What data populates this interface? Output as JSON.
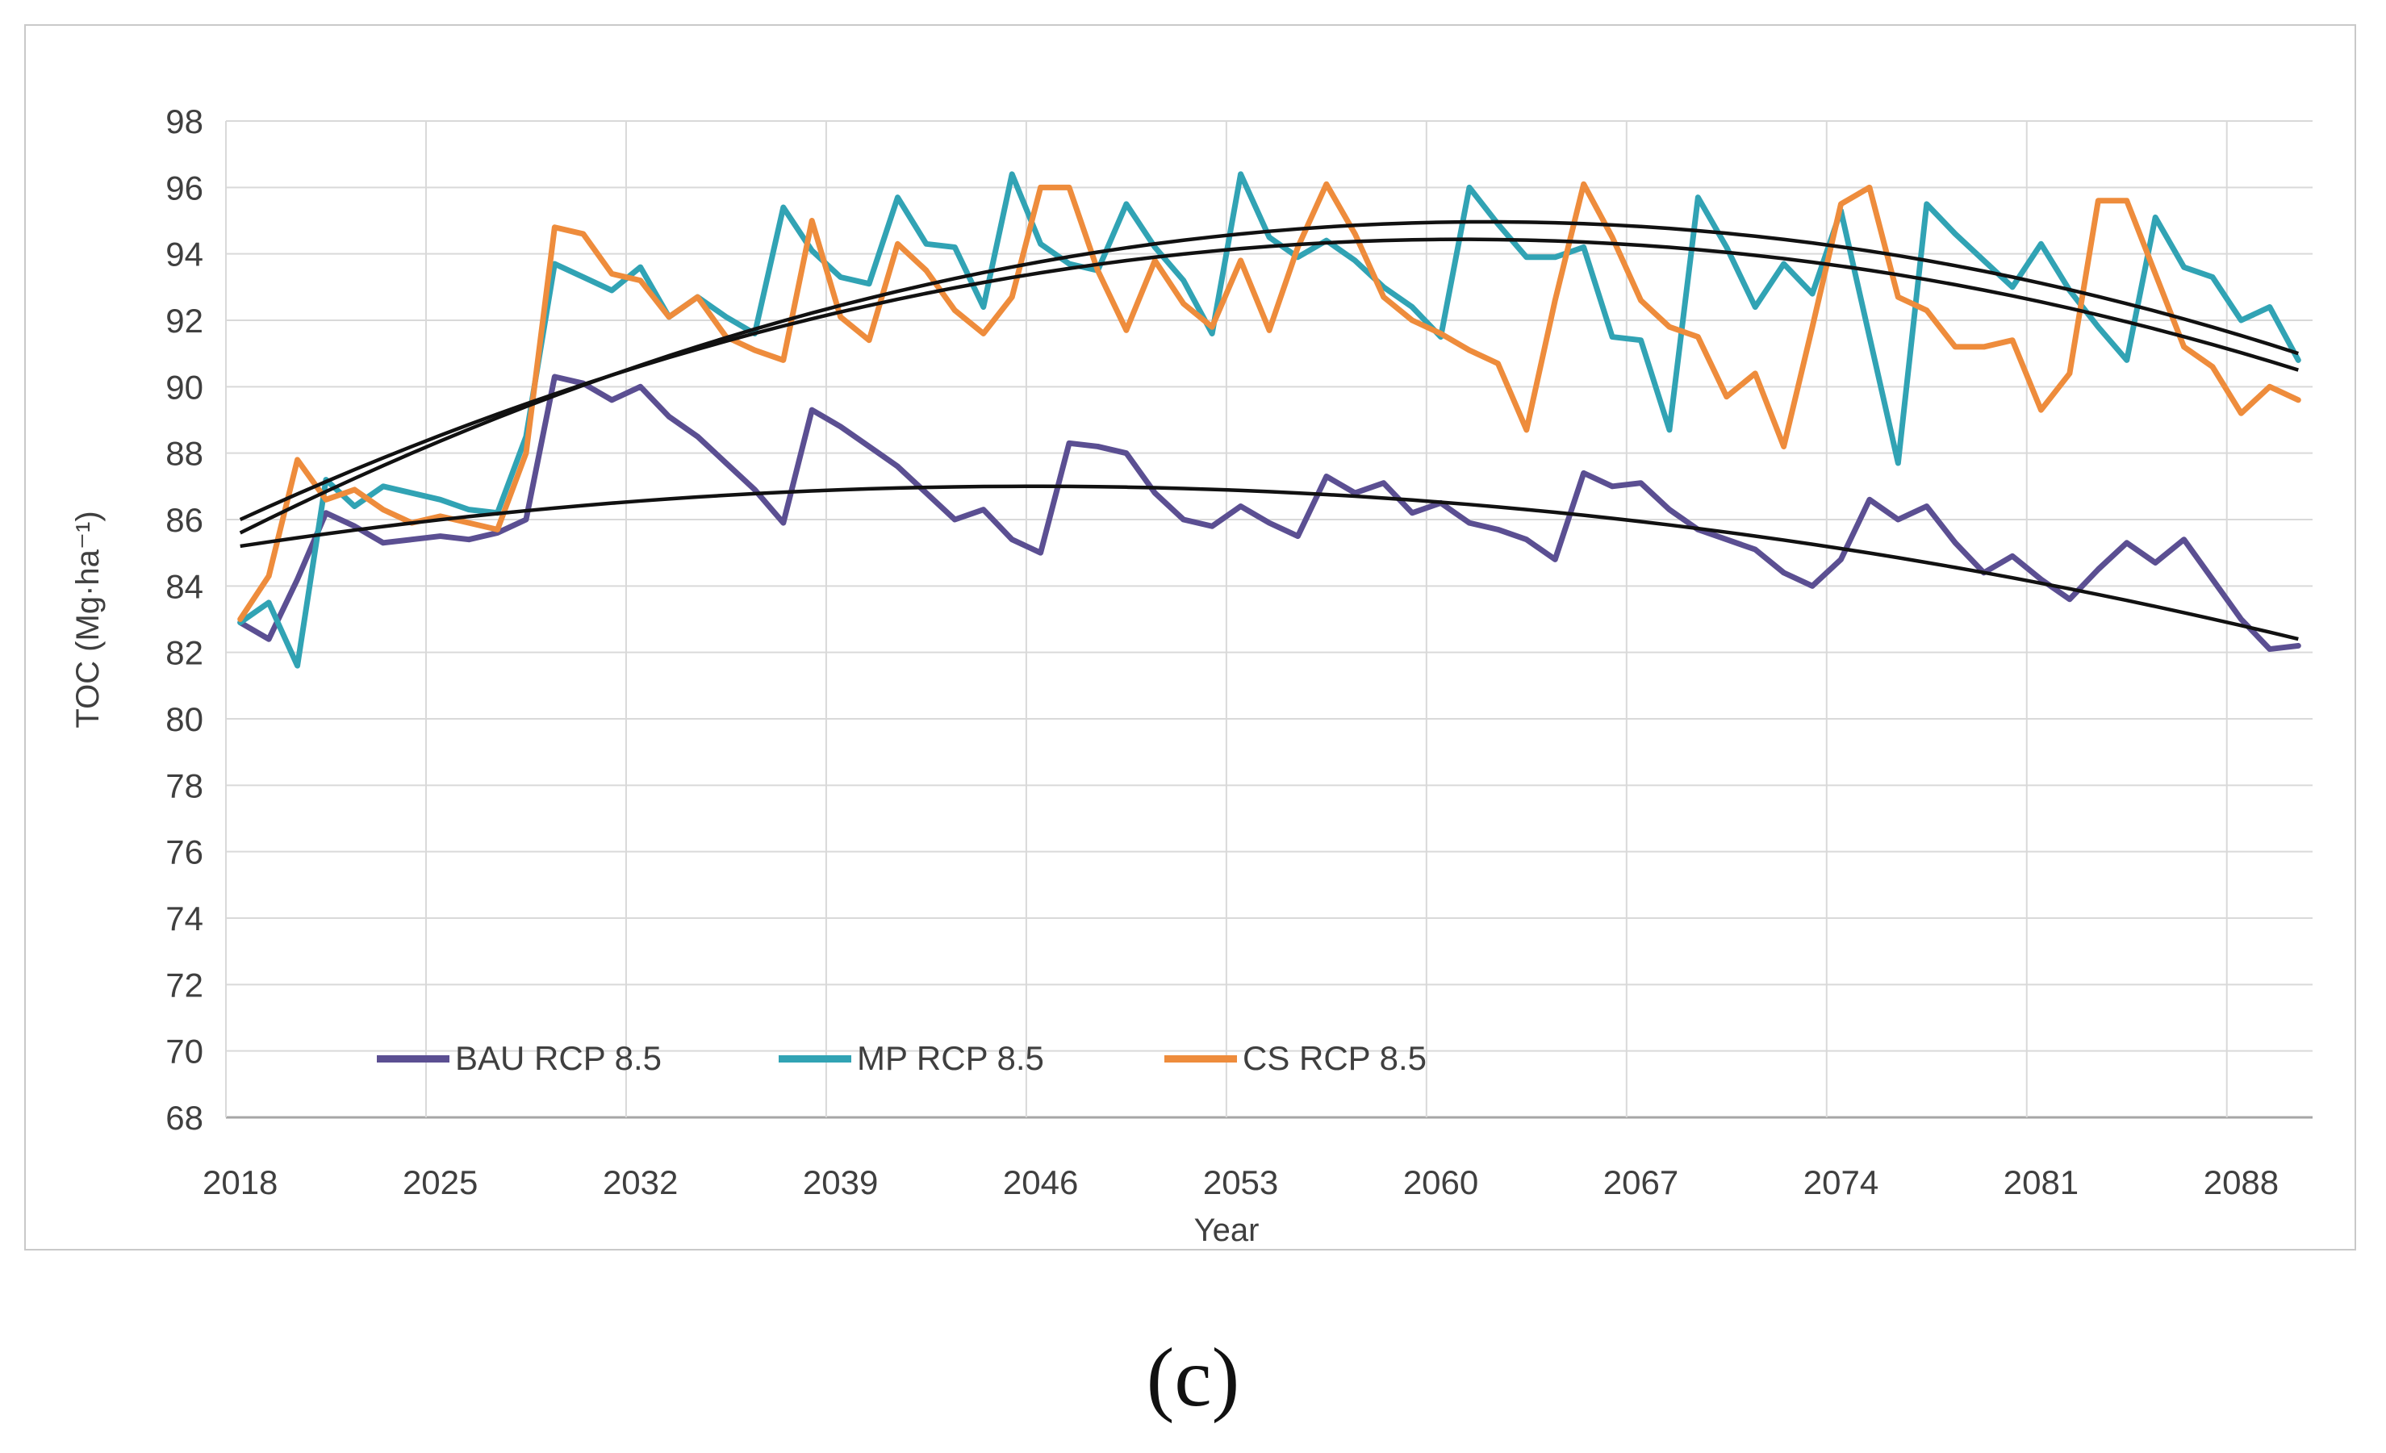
{
  "figure": {
    "caption": "(c)"
  },
  "chart_data": {
    "type": "line",
    "title": "",
    "xlabel": "Year",
    "ylabel": "TOC (Mg·ha⁻¹)",
    "ylim": [
      68,
      98
    ],
    "y_tick_step": 2,
    "y_ticks": [
      68,
      70,
      72,
      74,
      76,
      78,
      80,
      82,
      84,
      86,
      88,
      90,
      92,
      94,
      96,
      98
    ],
    "x_ticks": [
      2018,
      2025,
      2032,
      2039,
      2046,
      2053,
      2060,
      2067,
      2074,
      2081,
      2088
    ],
    "grid": true,
    "legend_position": "bottom-inside",
    "years": [
      2018,
      2019,
      2020,
      2021,
      2022,
      2023,
      2024,
      2025,
      2026,
      2027,
      2028,
      2029,
      2030,
      2031,
      2032,
      2033,
      2034,
      2035,
      2036,
      2037,
      2038,
      2039,
      2040,
      2041,
      2042,
      2043,
      2044,
      2045,
      2046,
      2047,
      2048,
      2049,
      2050,
      2051,
      2052,
      2053,
      2054,
      2055,
      2056,
      2057,
      2058,
      2059,
      2060,
      2061,
      2062,
      2063,
      2064,
      2065,
      2066,
      2067,
      2068,
      2069,
      2070,
      2071,
      2072,
      2073,
      2074,
      2075,
      2076,
      2077,
      2078,
      2079,
      2080,
      2081,
      2082,
      2083,
      2084,
      2085,
      2086,
      2087,
      2088,
      2089,
      2090
    ],
    "series": [
      {
        "name": "BAU RCP 8.5",
        "color": "#5b4f92",
        "values": [
          82.9,
          82.4,
          84.2,
          86.2,
          85.8,
          85.3,
          85.4,
          85.5,
          85.4,
          85.6,
          86.0,
          90.3,
          90.1,
          89.6,
          90.0,
          89.1,
          88.5,
          87.7,
          86.9,
          85.9,
          89.3,
          88.8,
          88.2,
          87.6,
          86.8,
          86.0,
          86.3,
          85.4,
          85.0,
          88.3,
          88.2,
          88.0,
          86.8,
          86.0,
          85.8,
          86.4,
          85.9,
          85.5,
          87.3,
          86.8,
          87.1,
          86.2,
          86.5,
          85.9,
          85.7,
          85.4,
          84.8,
          87.4,
          87.0,
          87.1,
          86.3,
          85.7,
          85.4,
          85.1,
          84.4,
          84.0,
          84.8,
          86.6,
          86.0,
          86.4,
          85.3,
          84.4,
          84.9,
          84.2,
          83.6,
          84.5,
          85.3,
          84.7,
          85.4,
          84.2,
          83.0,
          82.1,
          82.2
        ]
      },
      {
        "name": "MP RCP 8.5",
        "color": "#31a3b4",
        "values": [
          82.9,
          83.5,
          81.6,
          87.2,
          86.4,
          87.0,
          86.8,
          86.6,
          86.3,
          86.2,
          88.5,
          93.7,
          93.3,
          92.9,
          93.6,
          92.1,
          92.7,
          92.1,
          91.6,
          95.4,
          94.1,
          93.3,
          93.1,
          95.7,
          94.3,
          94.2,
          92.4,
          96.4,
          94.3,
          93.7,
          93.5,
          95.5,
          94.2,
          93.2,
          91.6,
          96.4,
          94.5,
          93.9,
          94.4,
          93.8,
          93.0,
          92.4,
          91.5,
          96.0,
          94.9,
          93.9,
          93.9,
          94.2,
          91.5,
          91.4,
          88.7,
          95.7,
          94.2,
          92.4,
          93.7,
          92.8,
          95.3,
          91.5,
          87.7,
          95.5,
          94.6,
          93.8,
          93.0,
          94.3,
          92.9,
          91.8,
          90.8,
          95.1,
          93.6,
          93.3,
          92.0,
          92.4,
          90.8
        ]
      },
      {
        "name": "CS RCP 8.5",
        "color": "#ee8c3c",
        "values": [
          83.0,
          84.3,
          87.8,
          86.6,
          86.9,
          86.3,
          85.9,
          86.1,
          85.9,
          85.7,
          88.0,
          94.8,
          94.6,
          93.4,
          93.2,
          92.1,
          92.7,
          91.5,
          91.1,
          90.8,
          95.0,
          92.1,
          91.4,
          94.3,
          93.5,
          92.3,
          91.6,
          92.7,
          96.0,
          96.0,
          93.5,
          91.7,
          93.8,
          92.5,
          91.8,
          93.8,
          91.7,
          94.2,
          96.1,
          94.6,
          92.7,
          92.0,
          91.6,
          91.1,
          90.7,
          88.7,
          92.6,
          96.1,
          94.5,
          92.6,
          91.8,
          91.5,
          89.7,
          90.4,
          88.2,
          91.8,
          95.5,
          96.0,
          92.7,
          92.3,
          91.2,
          91.2,
          91.4,
          89.3,
          90.4,
          95.6,
          95.6,
          93.4,
          91.2,
          90.6,
          89.2,
          90.0,
          89.6
        ]
      }
    ],
    "trendlines": [
      {
        "for": "BAU RCP 8.5",
        "type": "poly2",
        "color": "#111111",
        "a": 85.2,
        "b": 0.13,
        "c": -0.002345
      },
      {
        "for": "MP RCP 8.5",
        "type": "poly2",
        "color": "#111111",
        "a": 85.6,
        "b": 0.4294,
        "c": -0.004922
      },
      {
        "for": "CS RCP 8.5",
        "type": "poly2",
        "color": "#111111",
        "a": 86.0,
        "b": 0.3944,
        "c": -0.004609
      }
    ],
    "colors": {
      "gridline": "#d9d9d9",
      "axis_line": "#a6a6a6",
      "tick_text": "#3f3f3f",
      "panel_border": "#c9c9c9",
      "trend": "#111111"
    }
  }
}
